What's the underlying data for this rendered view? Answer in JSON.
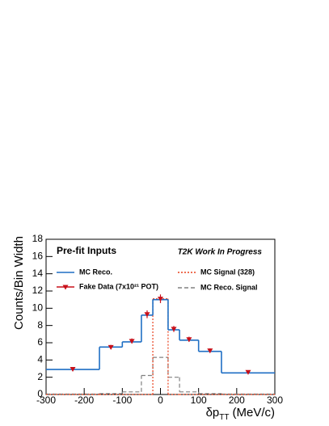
{
  "chart_data": {
    "type": "histogram",
    "title": "Pre-fit Inputs",
    "annotation": "T2K Work In Progress",
    "xlabel": {
      "symbol": "δp",
      "subscript": "TT",
      "unit": "(MeV/c)"
    },
    "ylabel": "Counts/Bin Width",
    "bins": [
      -300,
      -160,
      -100,
      -50,
      -20,
      20,
      50,
      100,
      160,
      300
    ],
    "series": [
      {
        "name": "MC Reco.",
        "color": "#1f6fc4",
        "dash": "none",
        "values": [
          2.9,
          5.5,
          6.1,
          9.2,
          11.0,
          7.5,
          6.3,
          5.0,
          2.5
        ]
      },
      {
        "name": "MC Signal (328)",
        "color": "#e8401c",
        "dash": "2,2",
        "values": [
          0,
          0,
          0,
          0,
          11.1,
          0,
          0,
          0,
          0
        ]
      },
      {
        "name": "MC Reco. Signal",
        "color": "#808080",
        "dash": "5,3",
        "values": [
          0.05,
          0.1,
          0.3,
          2.2,
          4.3,
          2.0,
          0.3,
          0.1,
          0.05
        ]
      }
    ],
    "points": {
      "name": "Fake Data (7x10²¹ POT)",
      "color": "#c8101a",
      "x": [
        -230,
        -130,
        -75,
        -35,
        0,
        35,
        75,
        130,
        230
      ],
      "values": [
        2.95,
        5.5,
        6.2,
        9.3,
        11.1,
        7.6,
        6.4,
        5.1,
        2.6
      ],
      "errors": [
        0.15,
        0.25,
        0.3,
        0.45,
        0.5,
        0.35,
        0.3,
        0.25,
        0.12
      ]
    },
    "xlim": [
      -300,
      300
    ],
    "ylim": [
      0,
      18
    ],
    "xticks": [
      -300,
      -200,
      -100,
      0,
      100,
      200,
      300
    ],
    "yticks": [
      0,
      2,
      4,
      6,
      8,
      10,
      12,
      14,
      16,
      18
    ]
  }
}
